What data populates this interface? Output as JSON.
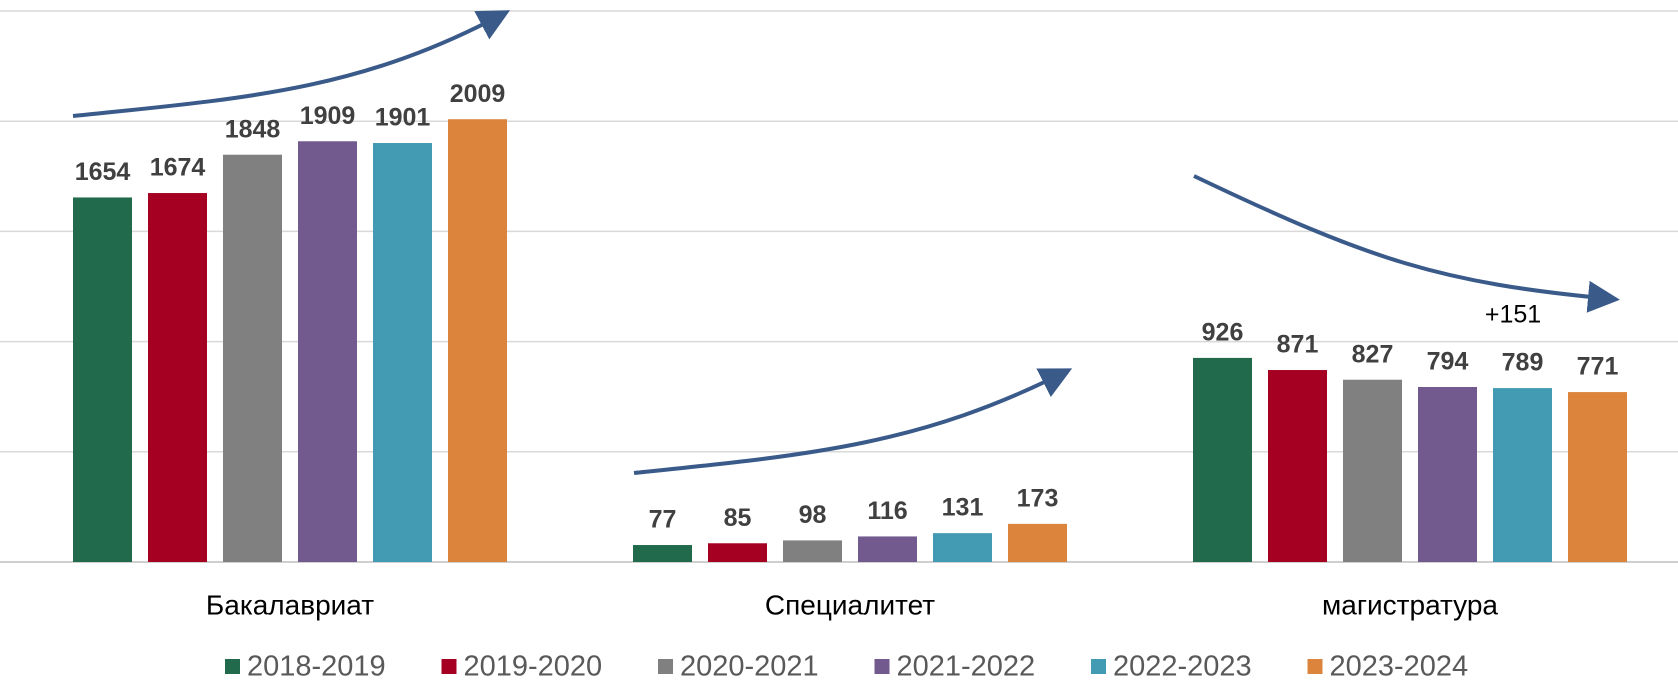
{
  "chart_data": {
    "type": "bar",
    "categories": [
      "Бакалавриат",
      "Специалитет",
      "магистратура"
    ],
    "series": [
      {
        "name": "2018-2019",
        "color": "#216b4c",
        "values": [
          1654,
          77,
          926
        ]
      },
      {
        "name": "2019-2020",
        "color": "#a50021",
        "values": [
          1674,
          85,
          871
        ]
      },
      {
        "name": "2020-2021",
        "color": "#808080",
        "values": [
          1848,
          98,
          827
        ]
      },
      {
        "name": "2021-2022",
        "color": "#725a8f",
        "values": [
          1909,
          116,
          794
        ]
      },
      {
        "name": "2022-2023",
        "color": "#429bb2",
        "values": [
          1901,
          131,
          789
        ]
      },
      {
        "name": "2023-2024",
        "color": "#dc833c",
        "values": [
          2009,
          173,
          771
        ]
      }
    ],
    "ylim": [
      0,
      2500
    ],
    "yticks": [
      0,
      500,
      1000,
      1500,
      2000,
      2500
    ],
    "grid": true,
    "annotations": [
      "+151"
    ]
  }
}
